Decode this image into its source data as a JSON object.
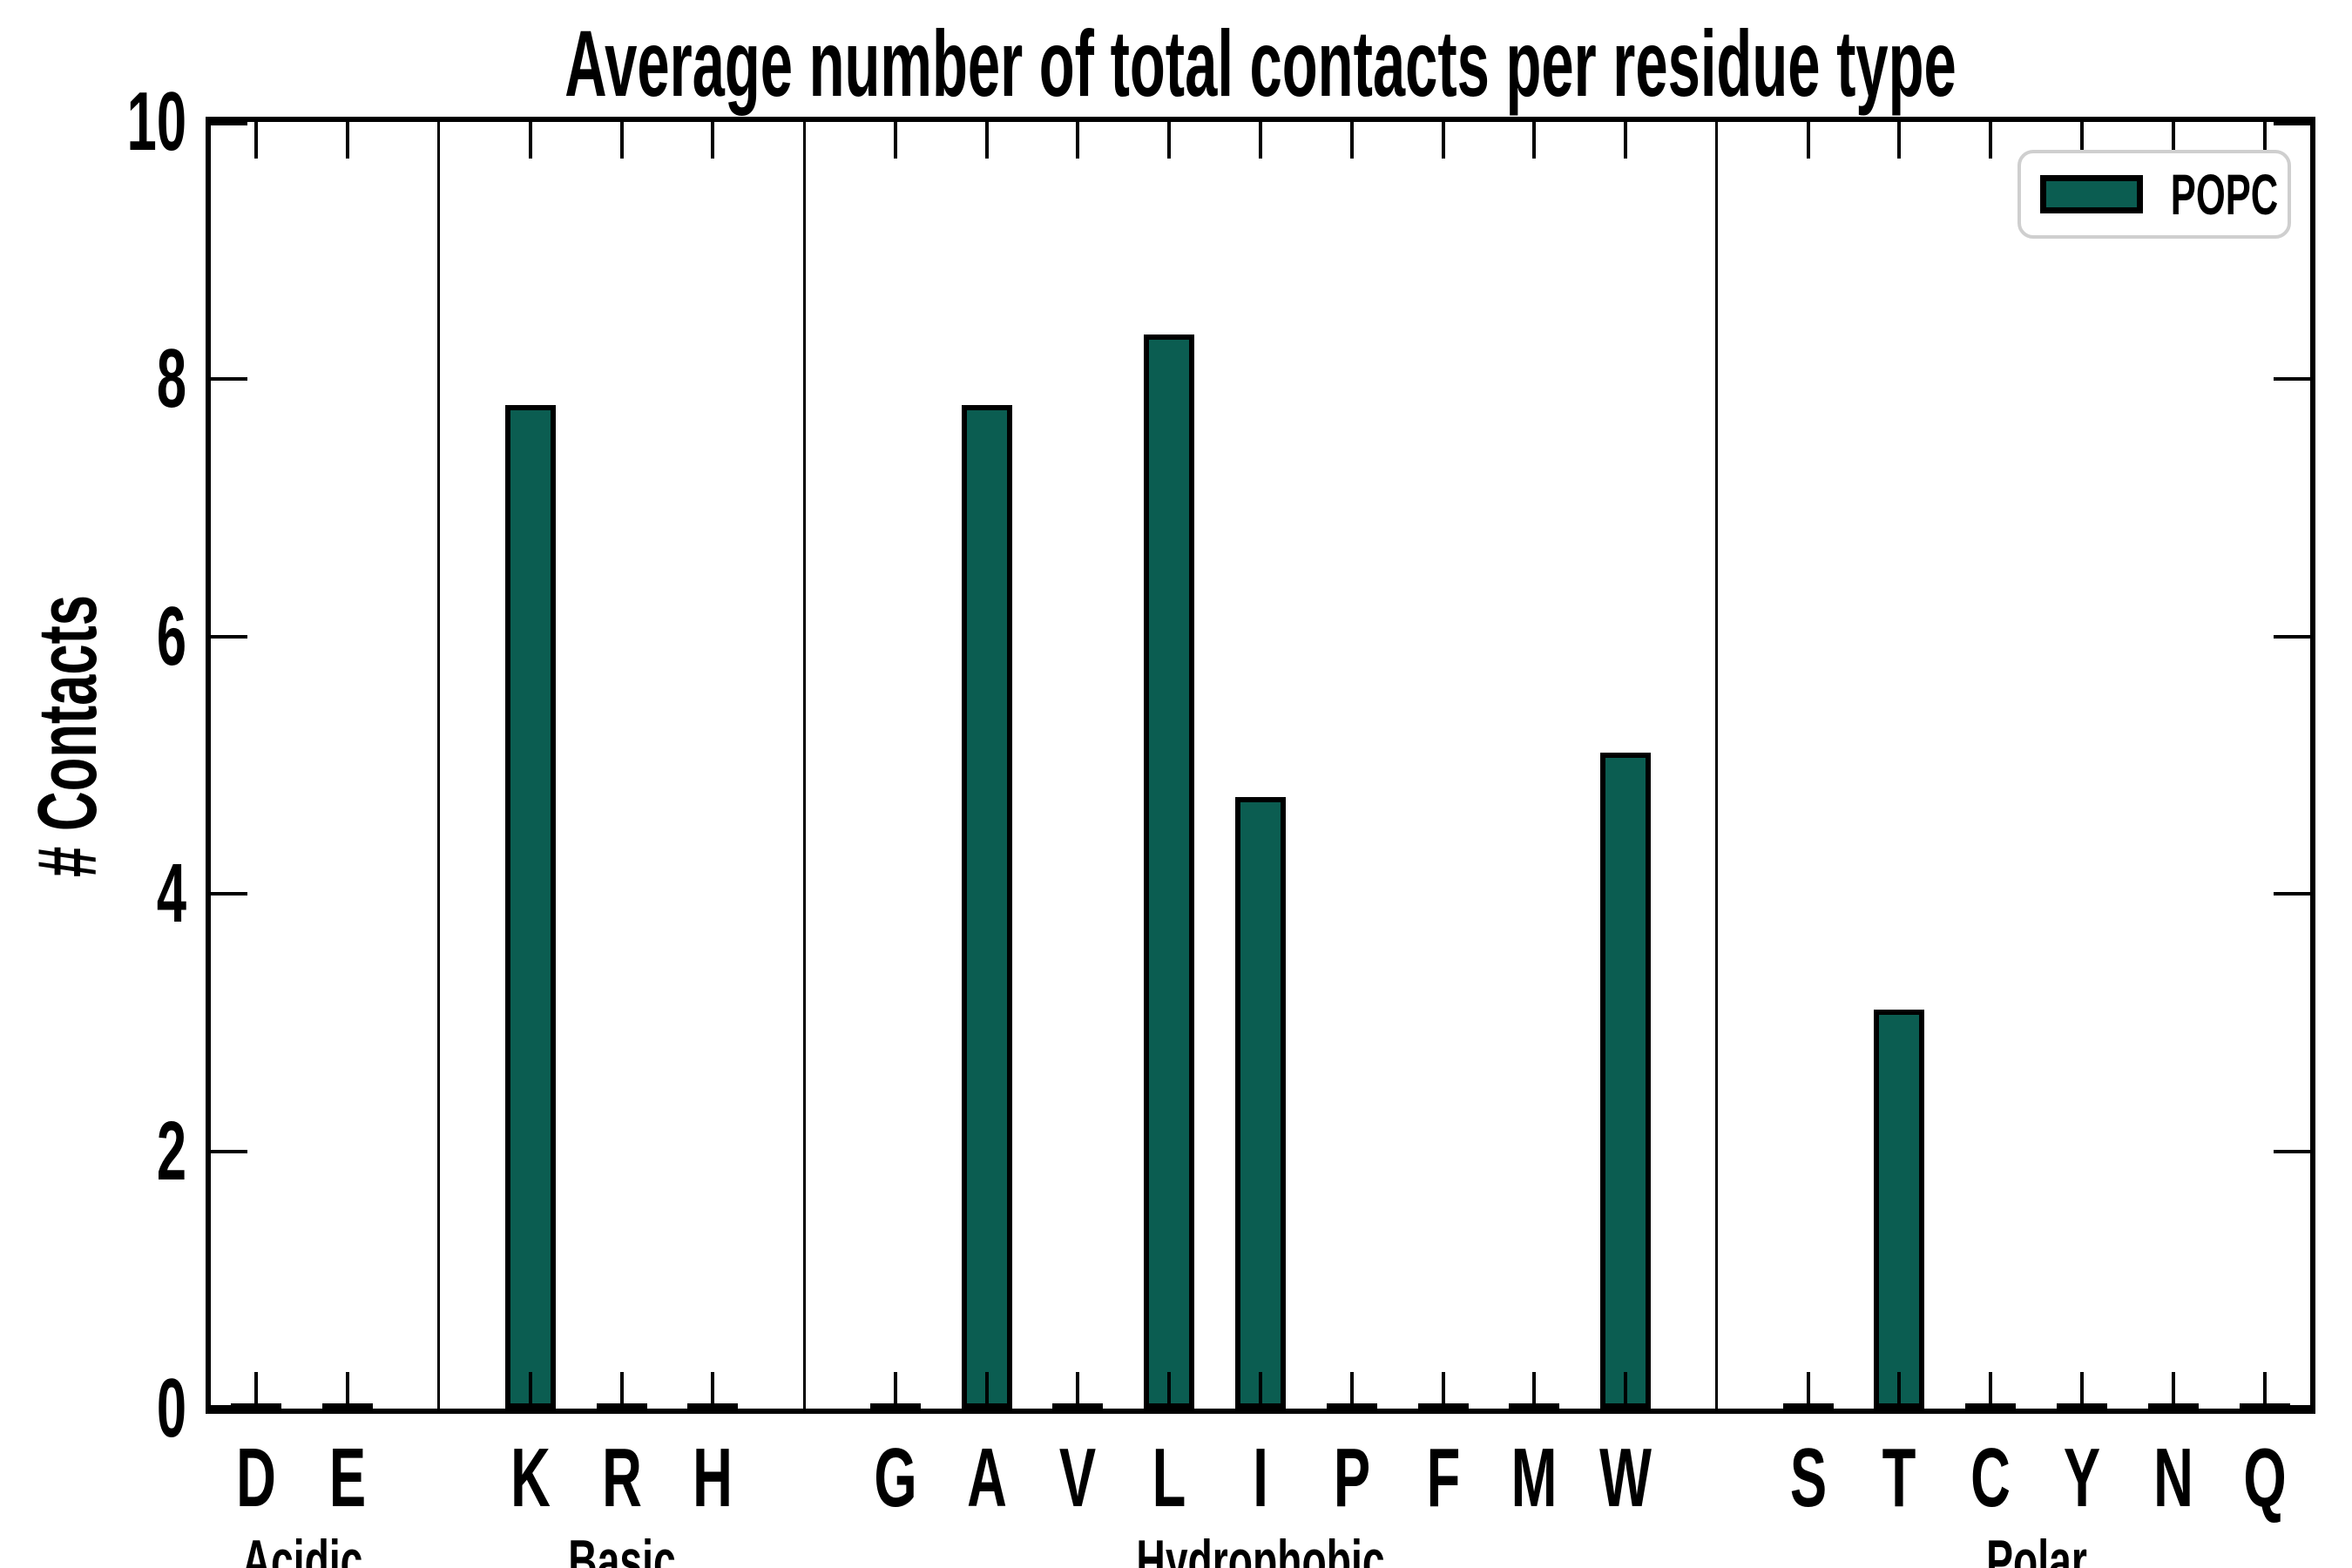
{
  "chart_data": {
    "type": "bar",
    "title": "Average number of total contacts per residue type",
    "xlabel": "",
    "ylabel": "# Contacts",
    "ylim": [
      0,
      10
    ],
    "yticks": [
      0,
      2,
      4,
      6,
      8,
      10
    ],
    "grid": false,
    "bar_color": "#0b5d51",
    "bar_edge_color": "#000000",
    "tick_direction": "in",
    "legend": {
      "position": "upper right",
      "entries": [
        {
          "label": "POPC",
          "color": "#0b5d51"
        }
      ]
    },
    "groups": [
      {
        "label": "Acidic",
        "categories": [
          "D",
          "E"
        ],
        "values": [
          0.03,
          0.03
        ]
      },
      {
        "label": "Basic",
        "categories": [
          "K",
          "R",
          "H"
        ],
        "values": [
          7.8,
          0.03,
          0.03
        ]
      },
      {
        "label": "Hydrophobic",
        "categories": [
          "G",
          "A",
          "V",
          "L",
          "I",
          "P",
          "F",
          "M",
          "W"
        ],
        "values": [
          0.03,
          7.8,
          0.03,
          8.35,
          4.75,
          0.03,
          0.03,
          0.03,
          5.1
        ]
      },
      {
        "label": "Polar",
        "categories": [
          "S",
          "T",
          "C",
          "Y",
          "N",
          "Q"
        ],
        "values": [
          0.03,
          3.1,
          0.03,
          0.03,
          0.03,
          0.03
        ]
      }
    ]
  }
}
